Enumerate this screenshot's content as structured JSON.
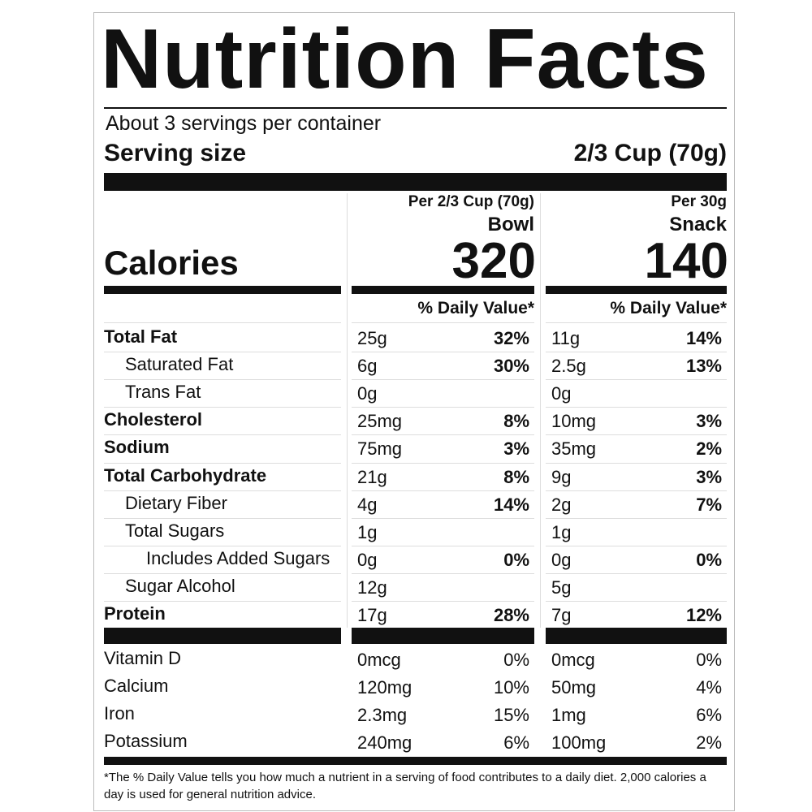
{
  "header": {
    "title": "Nutrition Facts",
    "servings": "About 3 servings per container",
    "serving_size_label": "Serving size",
    "serving_size": "2/3 Cup (70g)"
  },
  "calories_label": "Calories",
  "columns": [
    {
      "per": "Per 2/3 Cup (70g)",
      "name": "Bowl",
      "calories": 320
    },
    {
      "per": "Per 30g",
      "name": "Snack",
      "calories": 140
    }
  ],
  "daily_value_header": "% Daily Value*",
  "nutrients": [
    {
      "name": "Total Fat",
      "level": 0,
      "amounts": [
        "25g",
        "11g"
      ],
      "dv": [
        "32%",
        "14%"
      ]
    },
    {
      "name": "Saturated Fat",
      "level": 1,
      "amounts": [
        "6g",
        "2.5g"
      ],
      "dv": [
        "30%",
        "13%"
      ]
    },
    {
      "name": "Trans Fat",
      "level": 1,
      "amounts": [
        "0g",
        "0g"
      ],
      "dv": [
        null,
        null
      ]
    },
    {
      "name": "Cholesterol",
      "level": 0,
      "amounts": [
        "25mg",
        "10mg"
      ],
      "dv": [
        "8%",
        "3%"
      ]
    },
    {
      "name": "Sodium",
      "level": 0,
      "amounts": [
        "75mg",
        "35mg"
      ],
      "dv": [
        "3%",
        "2%"
      ]
    },
    {
      "name": "Total Carbohydrate",
      "level": 0,
      "amounts": [
        "21g",
        "9g"
      ],
      "dv": [
        "8%",
        "3%"
      ]
    },
    {
      "name": "Dietary Fiber",
      "level": 1,
      "amounts": [
        "4g",
        "2g"
      ],
      "dv": [
        "14%",
        "7%"
      ]
    },
    {
      "name": "Total Sugars",
      "level": 1,
      "amounts": [
        "1g",
        "1g"
      ],
      "dv": [
        null,
        null
      ]
    },
    {
      "name": "Includes Added Sugars",
      "level": 2,
      "amounts": [
        "0g",
        "0g"
      ],
      "dv": [
        "0%",
        "0%"
      ]
    },
    {
      "name": "Sugar Alcohol",
      "level": 1,
      "amounts": [
        "12g",
        "5g"
      ],
      "dv": [
        null,
        null
      ]
    },
    {
      "name": "Protein",
      "level": 0,
      "amounts": [
        "17g",
        "7g"
      ],
      "dv": [
        "28%",
        "12%"
      ]
    }
  ],
  "vitamins": [
    {
      "name": "Vitamin D",
      "amounts": [
        "0mcg",
        "0mcg"
      ],
      "dv": [
        "0%",
        "0%"
      ]
    },
    {
      "name": "Calcium",
      "amounts": [
        "120mg",
        "50mg"
      ],
      "dv": [
        "10%",
        "4%"
      ]
    },
    {
      "name": "Iron",
      "amounts": [
        "2.3mg",
        "1mg"
      ],
      "dv": [
        "15%",
        "6%"
      ]
    },
    {
      "name": "Potassium",
      "amounts": [
        "240mg",
        "100mg"
      ],
      "dv": [
        "6%",
        "2%"
      ]
    }
  ],
  "footnote": "*The % Daily Value tells you how much a nutrient in a serving of food contributes to a daily diet. 2,000 calories a day is used for general nutrition advice."
}
